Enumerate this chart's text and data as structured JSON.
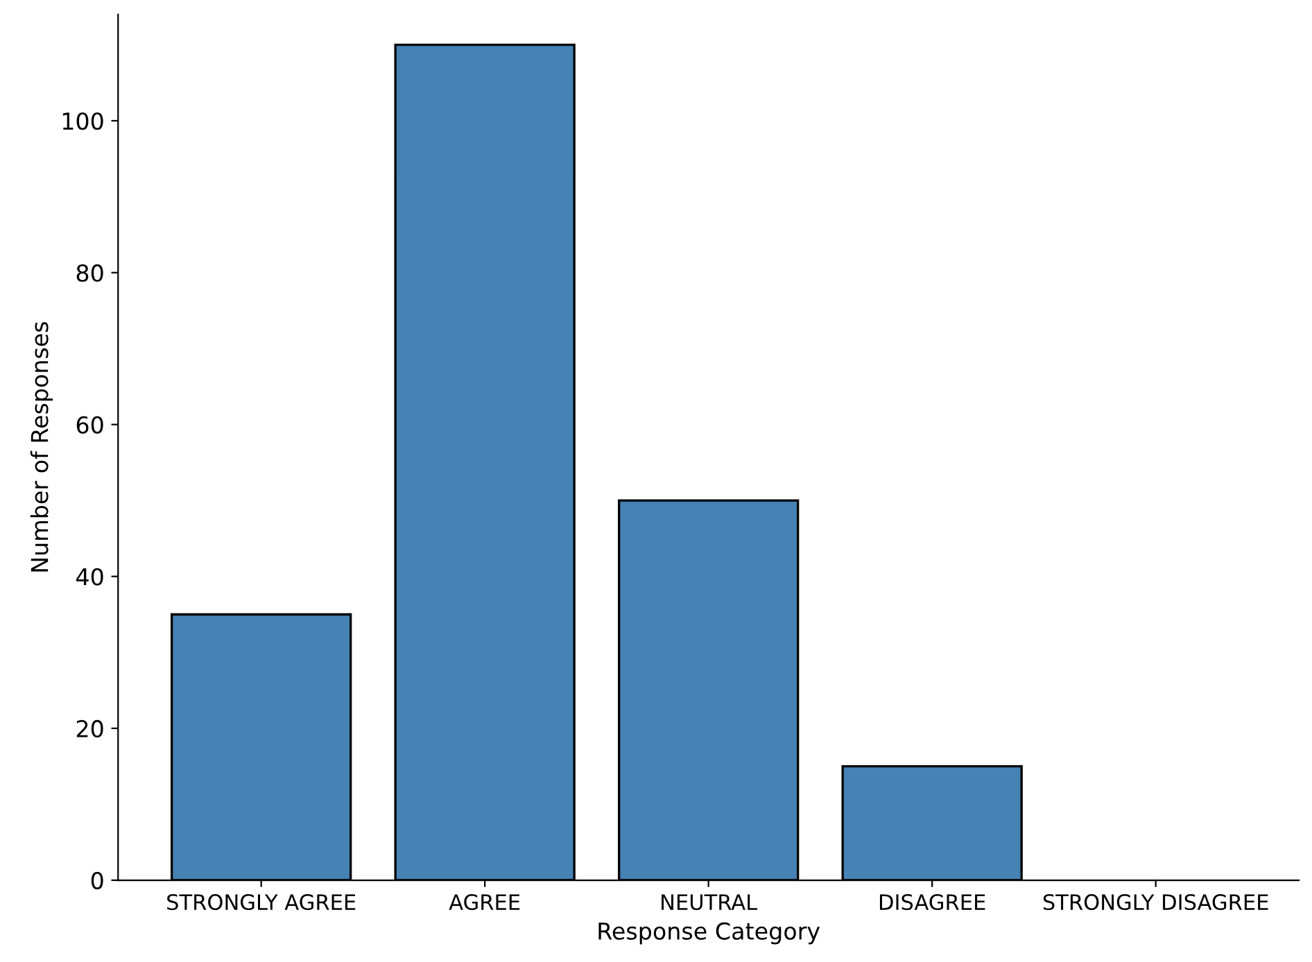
{
  "chart_data": {
    "type": "bar",
    "xlabel": "Response Category",
    "ylabel": "Number of Responses",
    "categories": [
      "STRONGLY AGREE",
      "AGREE",
      "NEUTRAL",
      "DISAGREE",
      "STRONGLY DISAGREE"
    ],
    "values": [
      35,
      110,
      50,
      15,
      0
    ],
    "color": "#4682b4",
    "ylim": [
      0,
      114
    ],
    "yticks": [
      0,
      20,
      40,
      60,
      80,
      100
    ]
  }
}
